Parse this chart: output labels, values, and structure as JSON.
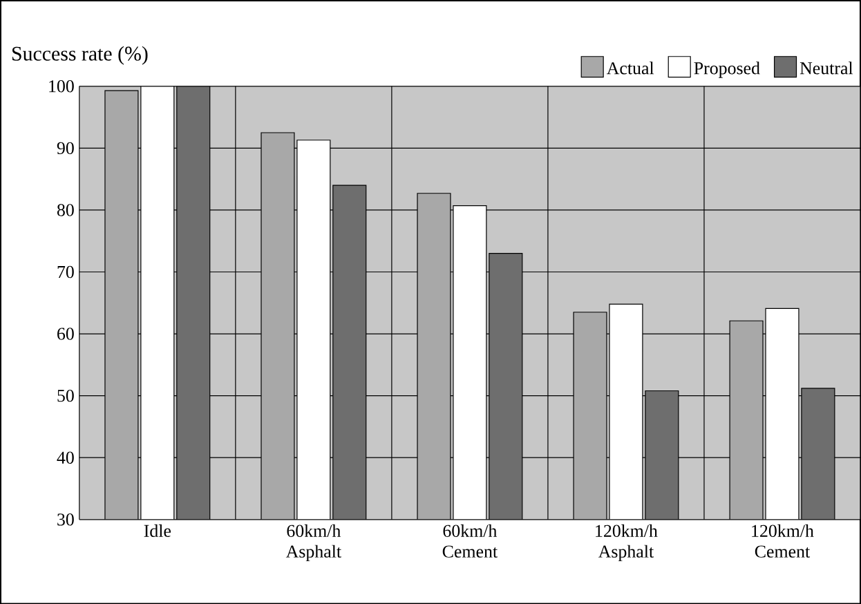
{
  "chart_data": {
    "type": "bar",
    "ylabel": "Success rate (%)",
    "categories": [
      "Idle",
      "60km/h Asphalt",
      "60km/h Cement",
      "120km/h Asphalt",
      "120km/h Cement"
    ],
    "series": [
      {
        "name": "Actual",
        "color": "#a8a8a8",
        "values": [
          99.3,
          92.5,
          82.7,
          63.5,
          62.1
        ]
      },
      {
        "name": "Proposed",
        "color": "#ffffff",
        "values": [
          100,
          91.3,
          80.7,
          64.8,
          64.1
        ]
      },
      {
        "name": "Neutral",
        "color": "#6e6e6e",
        "values": [
          100,
          84,
          73,
          50.8,
          51.2
        ]
      }
    ],
    "ylim": [
      30,
      100
    ],
    "yticks": [
      30,
      40,
      50,
      60,
      70,
      80,
      90,
      100
    ],
    "grid": true,
    "legend": "top right"
  }
}
